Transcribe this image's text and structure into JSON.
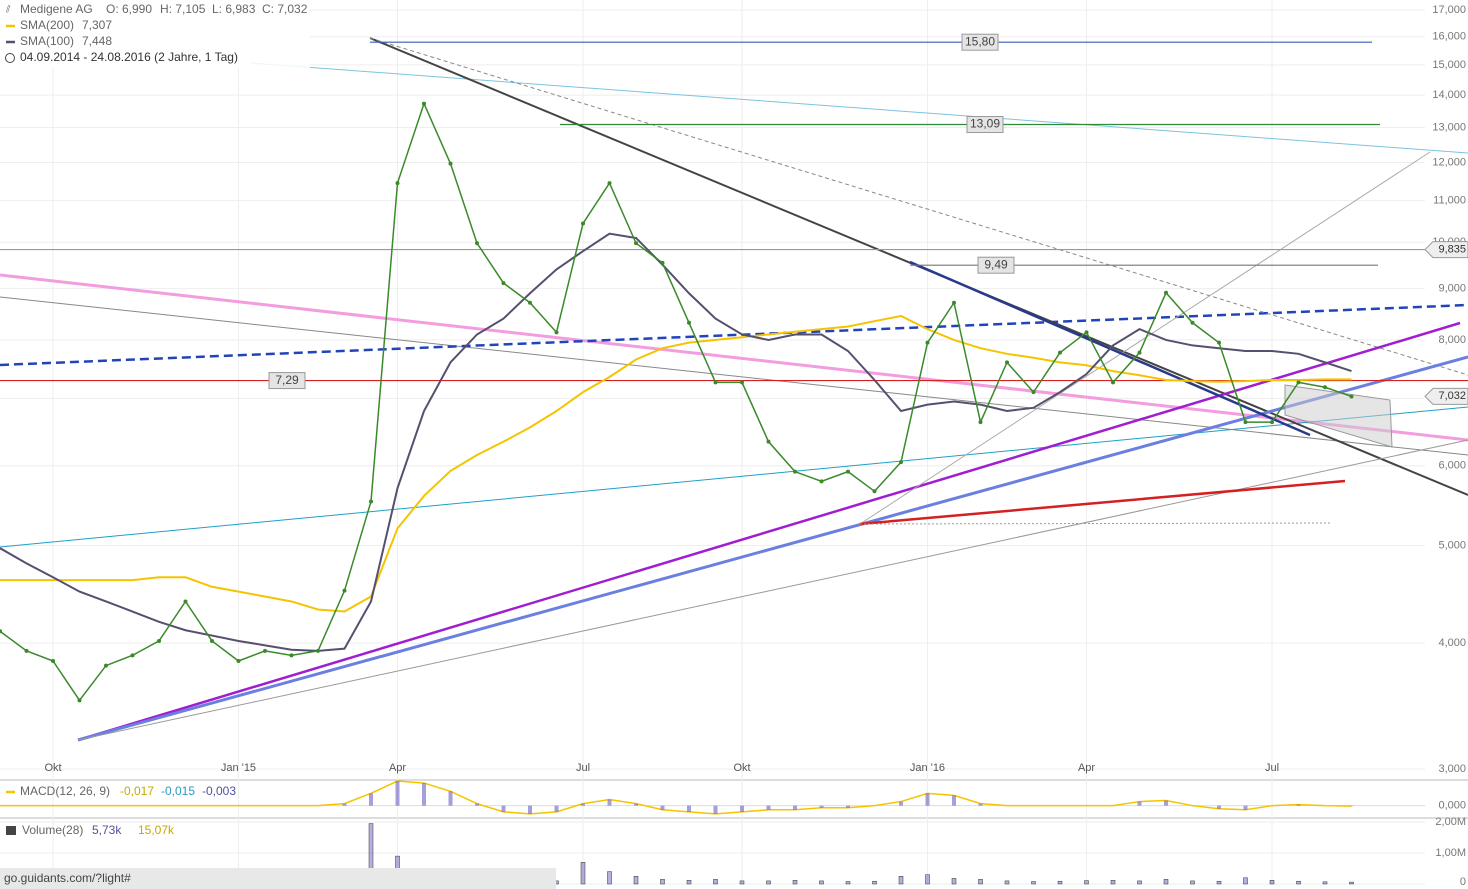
{
  "chart_data": {
    "type": "line",
    "title": "Medigene AG",
    "ohlc": [
      "O: 6,990",
      "H: 7,105",
      "L: 6,983",
      "C: 7,032"
    ],
    "period": "04.09.2014 - 24.08.2016 (2 Jahre, 1 Tag)",
    "log_scale": true,
    "grid": true,
    "color": "#3a8a2a",
    "categories": [
      null,
      null,
      "Okt",
      null,
      null,
      null,
      null,
      null,
      null,
      "Jan '15",
      null,
      null,
      null,
      null,
      null,
      "Apr",
      null,
      null,
      null,
      null,
      null,
      null,
      "Jul",
      null,
      null,
      null,
      null,
      null,
      "Okt",
      null,
      null,
      null,
      null,
      null,
      null,
      "Jan '16",
      null,
      null,
      null,
      null,
      null,
      "Apr",
      null,
      null,
      null,
      null,
      null,
      null,
      "Jul",
      null,
      null,
      null
    ],
    "values": [
      4.11,
      3.93,
      3.84,
      3.51,
      3.8,
      3.89,
      4.02,
      4.4,
      4.02,
      3.84,
      3.93,
      3.89,
      3.93,
      4.51,
      5.53,
      11.45,
      13.73,
      11.97,
      9.98,
      9.11,
      8.71,
      8.14,
      10.44,
      11.45,
      9.98,
      9.54,
      8.32,
      7.26,
      7.26,
      6.34,
      5.92,
      5.79,
      5.92,
      5.66,
      6.05,
      7.95,
      8.71,
      6.63,
      7.6,
      7.1,
      7.77,
      8.14,
      7.26,
      7.77,
      8.91,
      8.32,
      7.95,
      6.63,
      6.63,
      7.26,
      7.18,
      7.03
    ],
    "series": [
      {
        "name": "SMA(200)",
        "color": "#f5c400",
        "last_label": "7,307",
        "values": [
          4.62,
          4.62,
          4.62,
          4.62,
          4.62,
          4.62,
          4.65,
          4.65,
          4.55,
          4.5,
          4.45,
          4.4,
          4.32,
          4.3,
          4.45,
          5.2,
          5.6,
          5.93,
          6.15,
          6.34,
          6.55,
          6.8,
          7.1,
          7.35,
          7.65,
          7.85,
          7.95,
          8.0,
          8.05,
          8.1,
          8.15,
          8.2,
          8.25,
          8.35,
          8.45,
          8.2,
          8.0,
          7.85,
          7.75,
          7.68,
          7.6,
          7.55,
          7.45,
          7.38,
          7.3,
          7.28,
          7.27,
          7.28,
          7.3,
          7.3,
          7.31,
          7.31
        ]
      },
      {
        "name": "SMA(100)",
        "color": "#55506e",
        "last_label": "7,448",
        "values": [
          4.97,
          4.8,
          4.65,
          4.5,
          4.4,
          4.3,
          4.2,
          4.12,
          4.07,
          4.02,
          3.98,
          3.94,
          3.93,
          3.95,
          4.4,
          5.7,
          6.8,
          7.6,
          8.1,
          8.4,
          8.9,
          9.4,
          9.8,
          10.2,
          10.1,
          9.5,
          8.9,
          8.4,
          8.1,
          8.0,
          8.1,
          8.1,
          7.8,
          7.3,
          6.8,
          6.9,
          6.95,
          6.9,
          6.8,
          6.85,
          7.1,
          7.4,
          7.9,
          8.2,
          8.0,
          7.9,
          7.85,
          7.8,
          7.8,
          7.75,
          7.6,
          7.45
        ]
      }
    ],
    "ylim": [
      3,
      17.4
    ],
    "yticks": [
      {
        "value": 3,
        "label": "3,000"
      },
      {
        "value": 4,
        "label": "4,000"
      },
      {
        "value": 5,
        "label": "5,000"
      },
      {
        "value": 6,
        "label": "6,000"
      },
      {
        "value": 7,
        "label": "7,000"
      },
      {
        "value": 8,
        "label": "8,000"
      },
      {
        "value": 9,
        "label": "9,000"
      },
      {
        "value": 10,
        "label": "10,000"
      },
      {
        "value": 11,
        "label": "11,000"
      },
      {
        "value": 12,
        "label": "12,000"
      },
      {
        "value": 13,
        "label": "13,000"
      },
      {
        "value": 14,
        "label": "14,000"
      },
      {
        "value": 15,
        "label": "15,000"
      },
      {
        "value": 16,
        "label": "16,000"
      },
      {
        "value": 17,
        "label": "17,000"
      }
    ],
    "levels": [
      {
        "value": 15.8,
        "label": "15,80",
        "color": "#3b5bb5"
      },
      {
        "value": 13.09,
        "label": "13,09",
        "color": "#2e8b3a"
      },
      {
        "value": 9.49,
        "label": "9,49",
        "color": "#777777"
      },
      {
        "value": 7.29,
        "label": "7,29",
        "color": "#d42020"
      },
      {
        "value": 9.835,
        "label": "9,835",
        "color": "#999999"
      }
    ],
    "last_price": {
      "value": 7.032,
      "label": "7,032"
    },
    "macd": {
      "name": "MACD(12, 26, 9)",
      "labels": [
        "-0,017",
        "-0,015",
        "-0,003"
      ],
      "color": "#f5c400",
      "values": [
        0,
        0,
        0,
        0,
        0,
        0,
        0,
        0,
        0,
        0,
        0,
        0,
        0,
        0.1,
        0.6,
        1.2,
        1.1,
        0.7,
        0.1,
        -0.3,
        -0.4,
        -0.3,
        0.1,
        0.3,
        0.1,
        -0.2,
        -0.3,
        -0.4,
        -0.3,
        -0.2,
        -0.2,
        -0.1,
        -0.1,
        0,
        0.2,
        0.6,
        0.5,
        0.1,
        0,
        0,
        0,
        0,
        0,
        0.2,
        0.25,
        0,
        -0.15,
        -0.2,
        0,
        0.05,
        0,
        -0.02
      ],
      "ylim": [
        -0.6,
        1.25
      ],
      "yticks": [
        {
          "value": 0,
          "label": "0,000"
        }
      ]
    },
    "volume": {
      "name": "Volume(28)",
      "labels": [
        "5,73k",
        "15,07k"
      ],
      "color": "#6b5fc0",
      "values": [
        40000,
        30000,
        30000,
        60000,
        40000,
        30000,
        30000,
        50000,
        30000,
        30000,
        30000,
        30000,
        40000,
        120000,
        1950000,
        900000,
        500000,
        300000,
        200000,
        150000,
        120000,
        100000,
        700000,
        400000,
        250000,
        150000,
        120000,
        150000,
        100000,
        100000,
        120000,
        100000,
        80000,
        90000,
        250000,
        300000,
        180000,
        150000,
        100000,
        80000,
        90000,
        110000,
        120000,
        100000,
        150000,
        100000,
        90000,
        200000,
        120000,
        90000,
        70000,
        60000
      ],
      "ylim": [
        0,
        2130000
      ],
      "yticks": [
        {
          "value": 0,
          "label": "0"
        },
        {
          "value": 1000000,
          "label": "1,00M"
        },
        {
          "value": 2000000,
          "label": "2,00M"
        }
      ]
    },
    "footer": "go.guidants.com/?light#"
  }
}
